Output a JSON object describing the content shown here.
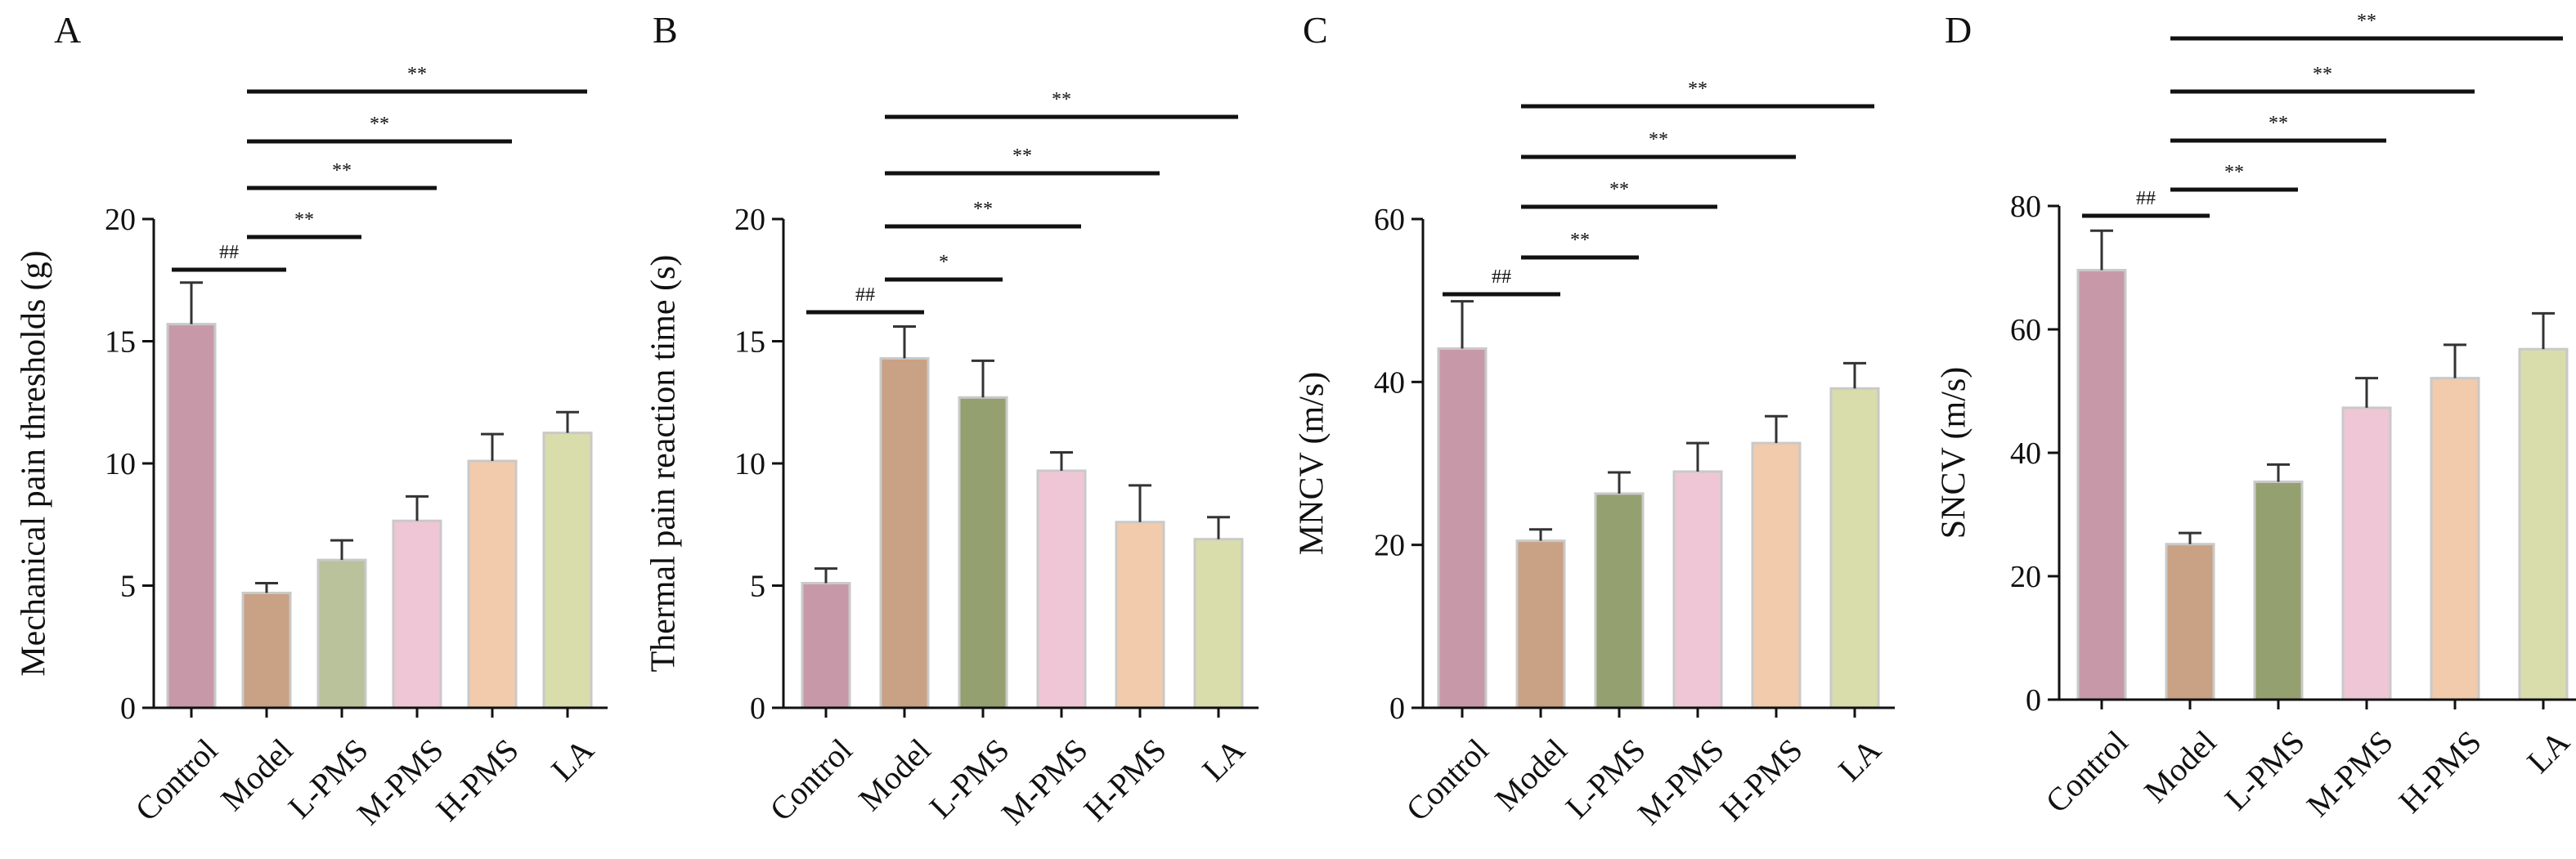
{
  "chart_data": [
    {
      "type": "bar",
      "panel": "A",
      "ylabel": "Mechanical pain thresholds (g)",
      "ylim": [
        0,
        20
      ],
      "yticks": [
        0,
        5,
        10,
        15,
        20
      ],
      "categories": [
        "Control",
        "Model",
        "L-PMS",
        "M-PMS",
        "H-PMS",
        "LA"
      ],
      "values": [
        15.7,
        4.7,
        6.05,
        7.65,
        10.1,
        11.25
      ],
      "errors": [
        1.7,
        0.4,
        0.8,
        1.0,
        1.1,
        0.85
      ],
      "significance": [
        {
          "from": "Control",
          "to": "Model",
          "label": "##"
        },
        {
          "from": "Model",
          "to": "L-PMS",
          "label": "**"
        },
        {
          "from": "Model",
          "to": "M-PMS",
          "label": "**"
        },
        {
          "from": "Model",
          "to": "H-PMS",
          "label": "**"
        },
        {
          "from": "Model",
          "to": "LA",
          "label": "**"
        }
      ]
    },
    {
      "type": "bar",
      "panel": "B",
      "ylabel": "Thermal pain reaction time (s)",
      "ylim": [
        0,
        20
      ],
      "yticks": [
        0,
        5,
        10,
        15,
        20
      ],
      "categories": [
        "Control",
        "Model",
        "L-PMS",
        "M-PMS",
        "H-PMS",
        "LA"
      ],
      "values": [
        5.1,
        14.3,
        12.7,
        9.7,
        7.6,
        6.9
      ],
      "errors": [
        0.6,
        1.3,
        1.5,
        0.75,
        1.5,
        0.9
      ],
      "significance": [
        {
          "from": "Control",
          "to": "Model",
          "label": "##"
        },
        {
          "from": "Model",
          "to": "L-PMS",
          "label": "*"
        },
        {
          "from": "Model",
          "to": "M-PMS",
          "label": "**"
        },
        {
          "from": "Model",
          "to": "H-PMS",
          "label": "**"
        },
        {
          "from": "Model",
          "to": "LA",
          "label": "**"
        }
      ]
    },
    {
      "type": "bar",
      "panel": "C",
      "ylabel": "MNCV (m/s)",
      "ylim": [
        0,
        60
      ],
      "yticks": [
        0,
        20,
        40,
        60
      ],
      "categories": [
        "Control",
        "Model",
        "L-PMS",
        "M-PMS",
        "H-PMS",
        "LA"
      ],
      "values": [
        44.1,
        20.5,
        26.3,
        29.0,
        32.5,
        39.2
      ],
      "errors": [
        5.8,
        1.4,
        2.6,
        3.5,
        3.3,
        3.1
      ],
      "significance": [
        {
          "from": "Control",
          "to": "Model",
          "label": "##"
        },
        {
          "from": "Model",
          "to": "L-PMS",
          "label": "**"
        },
        {
          "from": "Model",
          "to": "M-PMS",
          "label": "**"
        },
        {
          "from": "Model",
          "to": "H-PMS",
          "label": "**"
        },
        {
          "from": "Model",
          "to": "LA",
          "label": "**"
        }
      ]
    },
    {
      "type": "bar",
      "panel": "D",
      "ylabel": "SNCV (m/s)",
      "ylim": [
        0,
        80
      ],
      "yticks": [
        0,
        20,
        40,
        60,
        80
      ],
      "categories": [
        "Control",
        "Model",
        "L-PMS",
        "M-PMS",
        "H-PMS",
        "LA"
      ],
      "values": [
        69.6,
        25.2,
        35.3,
        47.3,
        52.1,
        56.8
      ],
      "errors": [
        6.4,
        1.8,
        2.8,
        4.8,
        5.4,
        5.8
      ],
      "significance": [
        {
          "from": "Control",
          "to": "Model",
          "label": "##"
        },
        {
          "from": "Model",
          "to": "L-PMS",
          "label": "**"
        },
        {
          "from": "Model",
          "to": "M-PMS",
          "label": "**"
        },
        {
          "from": "Model",
          "to": "H-PMS",
          "label": "**"
        },
        {
          "from": "Model",
          "to": "LA",
          "label": "**"
        }
      ]
    }
  ],
  "colors": {
    "bars": [
      "#c799a8",
      "#c9a184",
      "#b9c29a",
      "#efc6d5",
      "#f1cbac",
      "#d8ddab"
    ],
    "bars_dark": [
      "#c799a8",
      "#c9a184",
      "#94a06f",
      "#efc6d5",
      "#f1cbac",
      "#d8ddab"
    ],
    "axis": "#111111"
  }
}
